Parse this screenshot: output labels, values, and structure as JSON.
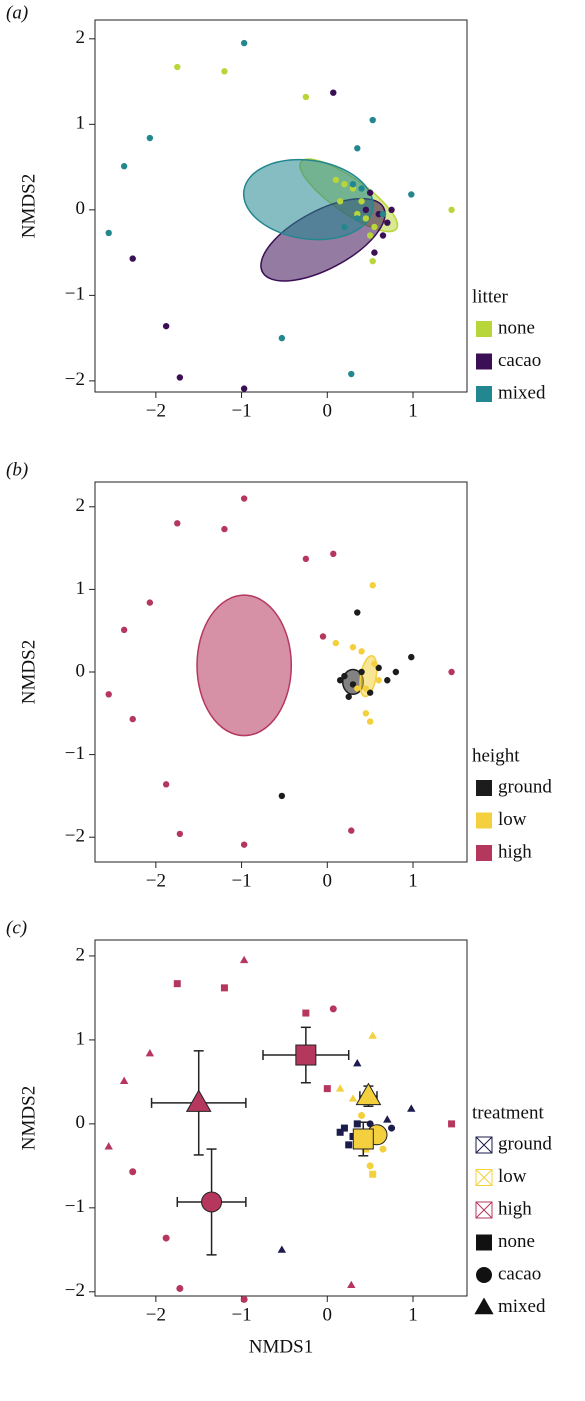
{
  "chart_data": [
    {
      "type": "scatter",
      "label": "(a)",
      "ylabel": "NMDS2",
      "legend_title": "litter",
      "xlim": [
        -2.71,
        1.63
      ],
      "ylim": [
        -2.13,
        2.22
      ],
      "xticks": [
        {
          "value": -2,
          "label": "−2"
        },
        {
          "value": -1,
          "label": "−1"
        },
        0,
        1
      ],
      "yticks": [
        {
          "value": -2,
          "label": "−2"
        },
        {
          "value": -1,
          "label": "−1"
        },
        0,
        1,
        2
      ],
      "series": [
        {
          "name": "none",
          "color": "#b8d53a",
          "x": [
            -1.75,
            -1.2,
            -0.25,
            1.45,
            0.53,
            0.1,
            0.2,
            0.3,
            0.4,
            0.45,
            0.5,
            0.35,
            0.15,
            0.55
          ],
          "y": [
            1.67,
            1.62,
            1.32,
            0.0,
            -0.6,
            0.35,
            0.3,
            0.25,
            0.1,
            -0.1,
            -0.3,
            -0.05,
            0.1,
            -0.2
          ],
          "ellipse": {
            "cx": 0.25,
            "cy": 0.17,
            "rx": 0.68,
            "ry": 0.2,
            "angle": -35
          }
        },
        {
          "name": "cacao",
          "color": "#3b0f55",
          "x": [
            0.07,
            -2.27,
            -1.88,
            -1.72,
            -0.97,
            0.55,
            0.6,
            0.7,
            0.75,
            0.5,
            0.65,
            0.45
          ],
          "y": [
            1.37,
            -0.57,
            -1.36,
            -1.96,
            -2.09,
            -0.5,
            -0.05,
            -0.15,
            0.0,
            0.2,
            -0.3,
            0.0
          ],
          "ellipse": {
            "cx": -0.05,
            "cy": -0.35,
            "rx": 0.8,
            "ry": 0.34,
            "angle": 28
          }
        },
        {
          "name": "mixed",
          "color": "#23878f",
          "x": [
            -0.97,
            0.53,
            -2.07,
            -2.37,
            -2.55,
            -0.53,
            0.28,
            0.35,
            0.98,
            0.65,
            0.3,
            0.4,
            0.2,
            0.35
          ],
          "y": [
            1.95,
            1.05,
            0.84,
            0.51,
            -0.27,
            -1.5,
            -1.92,
            0.72,
            0.18,
            -0.05,
            0.3,
            0.25,
            -0.2,
            -0.1
          ],
          "ellipse": {
            "cx": -0.22,
            "cy": 0.12,
            "rx": 0.76,
            "ry": 0.46,
            "angle": -8
          }
        }
      ]
    },
    {
      "type": "scatter",
      "label": "(b)",
      "ylabel": "NMDS2",
      "legend_title": "height",
      "xlim": [
        -2.71,
        1.63
      ],
      "ylim": [
        -2.3,
        2.3
      ],
      "xticks": [
        {
          "value": -2,
          "label": "−2"
        },
        {
          "value": -1,
          "label": "−1"
        },
        0,
        1
      ],
      "yticks": [
        {
          "value": -2,
          "label": "−2"
        },
        {
          "value": -1,
          "label": "−1"
        },
        0,
        1,
        2
      ],
      "series": [
        {
          "name": "ground",
          "color": "#1c1c1c",
          "x": [
            0.35,
            -0.53,
            0.98,
            0.2,
            0.3,
            0.15,
            0.4,
            0.6,
            0.7,
            0.8,
            0.25,
            0.5
          ],
          "y": [
            0.72,
            -1.5,
            0.18,
            -0.05,
            -0.15,
            -0.1,
            0.0,
            0.05,
            -0.1,
            0.0,
            -0.3,
            -0.25
          ],
          "ellipse": {
            "cx": 0.3,
            "cy": -0.12,
            "rx": 0.12,
            "ry": 0.15,
            "angle": 0
          }
        },
        {
          "name": "low",
          "color": "#f4d03f",
          "x": [
            0.53,
            0.1,
            0.3,
            0.4,
            0.45,
            0.5,
            0.55,
            0.45,
            0.6,
            0.35
          ],
          "y": [
            1.05,
            0.35,
            0.3,
            0.25,
            -0.5,
            -0.6,
            0.1,
            -0.2,
            -0.1,
            -0.2
          ],
          "ellipse": {
            "cx": 0.48,
            "cy": -0.05,
            "rx": 0.09,
            "ry": 0.25,
            "angle": -10
          }
        },
        {
          "name": "high",
          "color": "#b5375e",
          "x": [
            -1.75,
            -1.2,
            -0.97,
            -0.25,
            0.07,
            -2.07,
            -2.37,
            -2.55,
            -2.27,
            -1.88,
            -1.72,
            -0.97,
            0.28,
            1.45,
            -0.05
          ],
          "y": [
            1.8,
            1.73,
            2.1,
            1.37,
            1.43,
            0.84,
            0.51,
            -0.27,
            -0.57,
            -1.36,
            -1.96,
            -2.09,
            -1.92,
            0.0,
            0.43
          ],
          "ellipse": {
            "cx": -0.97,
            "cy": 0.08,
            "rx": 0.55,
            "ry": 0.85,
            "angle": 0
          }
        }
      ]
    },
    {
      "type": "scatter",
      "label": "(c)",
      "ylabel": "NMDS2",
      "xlabel": "NMDS1",
      "legend_title": "treatment",
      "xlim": [
        -2.71,
        1.63
      ],
      "ylim": [
        -2.05,
        2.19
      ],
      "xticks": [
        {
          "value": -2,
          "label": "−2"
        },
        {
          "value": -1,
          "label": "−1"
        },
        0,
        1
      ],
      "yticks": [
        {
          "value": -2,
          "label": "−2"
        },
        {
          "value": -1,
          "label": "−1"
        },
        0,
        1,
        2
      ],
      "shape_legend": [
        "none",
        "cacao",
        "mixed"
      ],
      "series": [
        {
          "name": "ground",
          "color": "#1b1b4d",
          "x": [
            0.35,
            -0.53,
            0.98,
            0.7,
            0.2,
            0.3,
            0.15,
            0.35,
            0.25,
            0.6,
            0.75,
            0.5
          ],
          "y": [
            0.72,
            -1.5,
            0.18,
            0.05,
            -0.05,
            -0.15,
            -0.1,
            0.0,
            -0.25,
            -0.1,
            -0.05,
            0.0
          ],
          "shape": [
            "mixed",
            "mixed",
            "mixed",
            "mixed",
            "none",
            "none",
            "none",
            "none",
            "none",
            "cacao",
            "cacao",
            "cacao"
          ],
          "centroids": []
        },
        {
          "name": "low",
          "color": "#f4d03f",
          "x": [
            0.53,
            0.15,
            0.3,
            0.53,
            0.45,
            0.6,
            0.5,
            0.65,
            0.4
          ],
          "y": [
            1.05,
            0.42,
            0.3,
            -0.6,
            -0.3,
            -0.2,
            -0.5,
            -0.3,
            0.1
          ],
          "shape": [
            "mixed",
            "mixed",
            "mixed",
            "none",
            "none",
            "none",
            "cacao",
            "cacao",
            "cacao"
          ],
          "centroids": [
            {
              "shape": "mixed",
              "x": 0.48,
              "y": 0.33,
              "xerr": 0.1,
              "yerr": 0.12
            },
            {
              "shape": "cacao",
              "x": 0.58,
              "y": -0.13,
              "xerr": 0.08,
              "yerr": 0.1
            },
            {
              "shape": "none",
              "x": 0.42,
              "y": -0.18,
              "xerr": 0.08,
              "yerr": 0.2
            }
          ]
        },
        {
          "name": "high",
          "color": "#b5375e",
          "x": [
            -1.75,
            -1.2,
            -0.25,
            1.45,
            0.0,
            0.07,
            -2.27,
            -1.88,
            -1.72,
            -0.97,
            -0.97,
            -2.07,
            -2.37,
            -2.55,
            0.28
          ],
          "y": [
            1.67,
            1.62,
            1.32,
            0.0,
            0.42,
            1.37,
            -0.57,
            -1.36,
            -1.96,
            -2.09,
            1.95,
            0.84,
            0.51,
            -0.27,
            -1.92
          ],
          "shape": [
            "none",
            "none",
            "none",
            "none",
            "none",
            "cacao",
            "cacao",
            "cacao",
            "cacao",
            "cacao",
            "mixed",
            "mixed",
            "mixed",
            "mixed",
            "mixed"
          ],
          "centroids": [
            {
              "shape": "none",
              "x": -0.25,
              "y": 0.82,
              "xerr": 0.5,
              "yerr": 0.33
            },
            {
              "shape": "mixed",
              "x": -1.5,
              "y": 0.25,
              "xerr": 0.55,
              "yerr": 0.62
            },
            {
              "shape": "cacao",
              "x": -1.35,
              "y": -0.93,
              "xerr": 0.4,
              "yerr": 0.63
            }
          ]
        }
      ]
    }
  ]
}
